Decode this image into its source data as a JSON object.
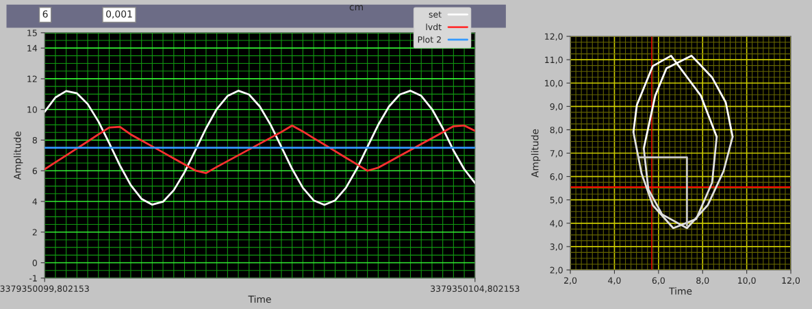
{
  "chart_data": [
    {
      "type": "line",
      "xlabel": "Time",
      "ylabel": "Amplitude",
      "annotations": [
        "6",
        "0,001",
        "cm"
      ],
      "categories": [
        "3379350099,802153",
        null,
        null,
        null,
        null,
        null,
        null,
        null,
        null,
        null,
        null,
        null,
        null,
        null,
        null,
        null,
        null,
        null,
        null,
        null,
        null,
        null,
        null,
        null,
        null,
        null,
        null,
        null,
        null,
        null,
        null,
        null,
        null,
        null,
        null,
        null,
        null,
        null,
        null,
        null,
        "3379350104,802153"
      ],
      "ylim": [
        -1,
        15
      ],
      "yticks": [
        -1,
        {
          "value": -0.5,
          "label": null
        },
        0,
        {
          "value": 0.5,
          "label": null
        },
        {
          "value": 1,
          "label": null
        },
        {
          "value": 1.5,
          "label": null
        },
        2,
        {
          "value": 2.5,
          "label": null
        },
        {
          "value": 3,
          "label": null
        },
        {
          "value": 3.5,
          "label": null
        },
        4,
        {
          "value": 4.5,
          "label": null
        },
        {
          "value": 5,
          "label": null
        },
        {
          "value": 5.5,
          "label": null
        },
        6,
        {
          "value": 6.5,
          "label": null
        },
        {
          "value": 7,
          "label": null
        },
        8,
        {
          "value": 8.5,
          "label": null
        },
        {
          "value": 9,
          "label": null
        },
        {
          "value": 9.5,
          "label": null
        },
        10,
        {
          "value": 10.5,
          "label": null
        },
        {
          "value": 11,
          "label": null
        },
        {
          "value": 11.5,
          "label": null
        },
        12,
        {
          "value": 12.5,
          "label": null
        },
        {
          "value": 13,
          "label": null
        },
        {
          "value": 13.5,
          "label": null
        },
        14,
        {
          "value": 14.5,
          "label": null
        },
        15
      ],
      "grid": true,
      "legend": "top right",
      "series": [
        {
          "name": "set",
          "color": "#ffffff",
          "values": [
            9.85,
            10.78,
            11.2,
            11.05,
            10.35,
            9.21,
            7.8,
            6.34,
            5.07,
            4.17,
            3.79,
            3.98,
            4.73,
            5.9,
            7.32,
            8.77,
            10.03,
            10.88,
            11.22,
            10.97,
            10.19,
            9.0,
            7.56,
            6.12,
            4.89,
            4.07,
            3.78,
            4.07,
            4.89,
            6.11,
            7.56,
            8.99,
            10.19,
            10.97,
            11.22,
            10.89,
            10.02,
            8.77,
            7.32,
            6.1,
            5.2
          ]
        },
        {
          "name": "lvdt",
          "color": "#ff3030",
          "values": [
            6.1,
            6.55,
            7.0,
            7.46,
            7.91,
            8.37,
            8.82,
            8.86,
            8.37,
            7.98,
            7.59,
            7.2,
            6.8,
            6.41,
            6.02,
            5.85,
            6.25,
            6.63,
            7.01,
            7.39,
            7.77,
            8.15,
            8.53,
            8.95,
            8.56,
            8.13,
            7.71,
            7.28,
            6.85,
            6.43,
            6.0,
            6.2,
            6.58,
            6.97,
            7.35,
            7.74,
            8.12,
            8.51,
            8.9,
            8.95,
            8.6
          ]
        },
        {
          "name": "Plot 2",
          "color": "#3399ff",
          "values": [
            7.5,
            7.5,
            7.5,
            7.5,
            7.5,
            7.5,
            7.5,
            7.5,
            7.5,
            7.5,
            7.5,
            7.5,
            7.5,
            7.5,
            7.5,
            7.5,
            7.5,
            7.5,
            7.5,
            7.5,
            7.5,
            7.5,
            7.5,
            7.5,
            7.5,
            7.5,
            7.5,
            7.5,
            7.5,
            7.5,
            7.5,
            7.5,
            7.5,
            7.5,
            7.5,
            7.5,
            7.5,
            7.5,
            7.5,
            7.5,
            7.5
          ]
        }
      ]
    },
    {
      "type": "line",
      "xlabel": "Time",
      "ylabel": "Amplitude",
      "xlim": [
        2,
        12
      ],
      "xticks": [
        {
          "value": 2,
          "label": "2,0"
        },
        {
          "value": 2.25,
          "label": null
        },
        {
          "value": 2.5,
          "label": null
        },
        {
          "value": 2.75,
          "label": null
        },
        {
          "value": 3,
          "label": null
        },
        {
          "value": 3.25,
          "label": null
        },
        {
          "value": 3.5,
          "label": null
        },
        {
          "value": 3.75,
          "label": null
        },
        {
          "value": 4,
          "label": "4,0"
        },
        {
          "value": 4.25,
          "label": null
        },
        {
          "value": 4.5,
          "label": null
        },
        {
          "value": 4.75,
          "label": null
        },
        {
          "value": 5,
          "label": null
        },
        {
          "value": 5.25,
          "label": null
        },
        {
          "value": 5.5,
          "label": null
        },
        {
          "value": 5.75,
          "label": null
        },
        {
          "value": 6,
          "label": "6,0"
        },
        {
          "value": 6.25,
          "label": null
        },
        {
          "value": 6.5,
          "label": null
        },
        {
          "value": 6.75,
          "label": null
        },
        {
          "value": 7,
          "label": null
        },
        {
          "value": 7.25,
          "label": null
        },
        {
          "value": 7.5,
          "label": null
        },
        {
          "value": 7.75,
          "label": null
        },
        {
          "value": 8,
          "label": "8,0"
        },
        {
          "value": 8.25,
          "label": null
        },
        {
          "value": 8.5,
          "label": null
        },
        {
          "value": 8.75,
          "label": null
        },
        {
          "value": 9,
          "label": null
        },
        {
          "value": 9.25,
          "label": null
        },
        {
          "value": 9.5,
          "label": null
        },
        {
          "value": 9.75,
          "label": null
        },
        {
          "value": 10,
          "label": "10,0"
        },
        {
          "value": 10.25,
          "label": null
        },
        {
          "value": 10.5,
          "label": null
        },
        {
          "value": 10.75,
          "label": null
        },
        {
          "value": 11,
          "label": null
        },
        {
          "value": 11.25,
          "label": null
        },
        {
          "value": 11.5,
          "label": null
        },
        {
          "value": 11.75,
          "label": null
        },
        {
          "value": 12,
          "label": "12,0"
        }
      ],
      "ylim": [
        2,
        12
      ],
      "yticks": [
        {
          "value": 2,
          "label": "2,0"
        },
        {
          "value": 2.25,
          "label": null
        },
        {
          "value": 2.5,
          "label": null
        },
        {
          "value": 2.75,
          "label": null
        },
        {
          "value": 3,
          "label": "3,0"
        },
        {
          "value": 3.25,
          "label": null
        },
        {
          "value": 3.5,
          "label": null
        },
        {
          "value": 3.75,
          "label": null
        },
        {
          "value": 4,
          "label": "4,0"
        },
        {
          "value": 4.25,
          "label": null
        },
        {
          "value": 4.5,
          "label": null
        },
        {
          "value": 4.75,
          "label": null
        },
        {
          "value": 5,
          "label": "5,0"
        },
        {
          "value": 5.25,
          "label": null
        },
        {
          "value": 5.5,
          "label": null
        },
        {
          "value": 5.75,
          "label": null
        },
        {
          "value": 6,
          "label": "6,0"
        },
        {
          "value": 6.25,
          "label": null
        },
        {
          "value": 6.5,
          "label": null
        },
        {
          "value": 6.75,
          "label": null
        },
        {
          "value": 7,
          "label": "7,0"
        },
        {
          "value": 7.25,
          "label": null
        },
        {
          "value": 7.5,
          "label": null
        },
        {
          "value": 7.75,
          "label": null
        },
        {
          "value": 8,
          "label": "8,0"
        },
        {
          "value": 8.25,
          "label": null
        },
        {
          "value": 8.5,
          "label": null
        },
        {
          "value": 8.75,
          "label": null
        },
        {
          "value": 9,
          "label": "9,0"
        },
        {
          "value": 9.25,
          "label": null
        },
        {
          "value": 9.5,
          "label": null
        },
        {
          "value": 9.75,
          "label": null
        },
        {
          "value": 10,
          "label": "10,0"
        },
        {
          "value": 10.25,
          "label": null
        },
        {
          "value": 10.5,
          "label": null
        },
        {
          "value": 10.75,
          "label": null
        },
        {
          "value": 11,
          "label": "11,0"
        },
        {
          "value": 11.25,
          "label": null
        },
        {
          "value": 11.5,
          "label": null
        },
        {
          "value": 11.75,
          "label": null
        },
        {
          "value": 12,
          "label": "12,0"
        }
      ],
      "grid": true,
      "ref_lines": [
        {
          "axis": "y",
          "value": 5.55,
          "color": "#ff0000"
        },
        {
          "axis": "x",
          "value": 5.69,
          "color": "#ff0000"
        }
      ],
      "series": [
        {
          "color": "#ffffff",
          "x": [
            5.33,
            5.85,
            6.36,
            7.5,
            8.43,
            9.05,
            9.36
          ],
          "values": [
            7.2,
            9.46,
            10.63,
            11.17,
            10.24,
            9.17,
            7.7
          ]
        },
        {
          "color": "#e0e0e0",
          "x": [
            5.33,
            5.54,
            6.16,
            7.29,
            8.23,
            8.95,
            9.36
          ],
          "values": [
            7.2,
            5.45,
            4.38,
            3.79,
            4.77,
            6.23,
            7.7
          ]
        },
        {
          "color": "#ffffff",
          "x": [
            4.86,
            5.02,
            5.74,
            6.57,
            7.92,
            8.64
          ],
          "values": [
            7.9,
            9.07,
            10.73,
            11.17,
            9.46,
            7.7
          ]
        },
        {
          "color": "#e0e0e0",
          "x": [
            4.86,
            5.23,
            5.74,
            6.67,
            7.71,
            8.43,
            8.64
          ],
          "values": [
            7.9,
            6.13,
            4.77,
            3.79,
            4.18,
            5.74,
            7.7
          ]
        },
        {
          "color": "#c8c8c8",
          "x": [
            5.08,
            7.29,
            7.29
          ],
          "values": [
            6.82,
            6.82,
            3.9
          ]
        }
      ]
    }
  ]
}
